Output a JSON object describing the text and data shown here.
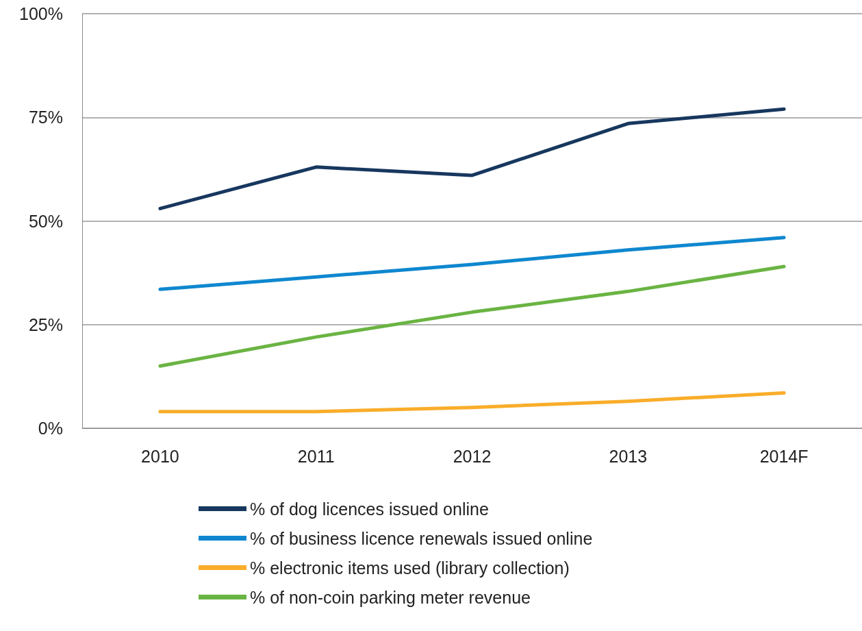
{
  "chart_data": {
    "type": "line",
    "categories": [
      "2010",
      "2011",
      "2012",
      "2013",
      "2014F"
    ],
    "series": [
      {
        "name": "% of dog licences issued online",
        "color": "#17375e",
        "values": [
          53,
          63,
          61,
          73.5,
          77
        ]
      },
      {
        "name": "% of business licence renewals issued online",
        "color": "#0f87cf",
        "values": [
          33.5,
          36.5,
          39.5,
          43,
          46
        ]
      },
      {
        "name": "% electronic items used (library collection)",
        "color": "#f9ad2a",
        "values": [
          4,
          4,
          5,
          6.5,
          8.5
        ]
      },
      {
        "name": "% of non-coin parking meter revenue",
        "color": "#6ab443",
        "values": [
          15,
          22,
          28,
          33,
          39
        ]
      }
    ],
    "ylim": [
      0,
      100
    ],
    "yticks": [
      {
        "value": 0,
        "label": "0%"
      },
      {
        "value": 25,
        "label": "25%"
      },
      {
        "value": 50,
        "label": "50%"
      },
      {
        "value": 75,
        "label": "75%"
      },
      {
        "value": 100,
        "label": "100%"
      }
    ],
    "grid": "y",
    "legend": "bottom",
    "marker": "none",
    "line_style": "solid"
  }
}
